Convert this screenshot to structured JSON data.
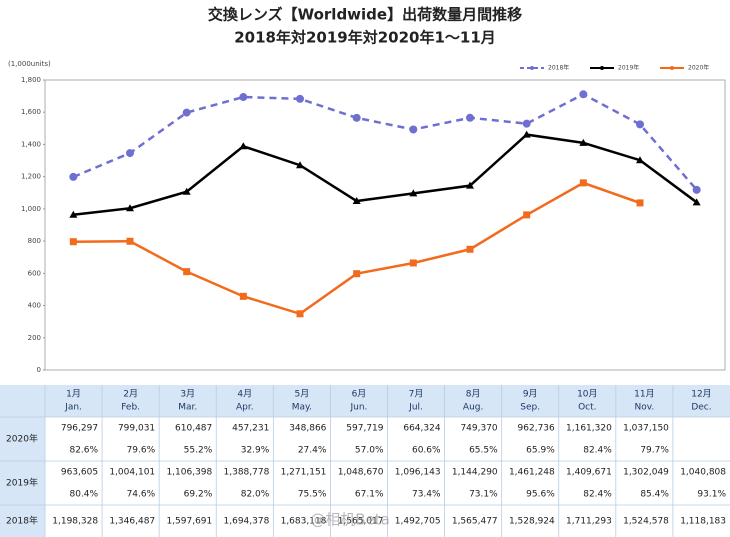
{
  "chart_data": {
    "type": "line",
    "title": "交換レンズ【Worldwide】出荷数量月間推移",
    "subtitle": "2018年対2019年対2020年1～11月",
    "y_label": "(1,000units)",
    "categories": [
      "1月",
      "2月",
      "3月",
      "4月",
      "5月",
      "6月",
      "7月",
      "8月",
      "9月",
      "10月",
      "11月",
      "12月"
    ],
    "categories_en": [
      "Jan.",
      "Feb.",
      "Mar.",
      "Apr.",
      "May.",
      "Jun.",
      "Jul.",
      "Aug.",
      "Sep.",
      "Oct.",
      "Nov.",
      "Dec."
    ],
    "ylim": [
      0,
      1800
    ],
    "yticks": [
      0,
      200,
      400,
      600,
      800,
      {
        "value": 1000,
        "label": "1,000"
      },
      {
        "value": 1200,
        "label": "1,200"
      },
      {
        "value": 1400,
        "label": "1,400"
      },
      {
        "value": 1600,
        "label": "1,600"
      },
      {
        "value": 1800,
        "label": "1,800"
      }
    ],
    "grid": false,
    "legend": "top-right",
    "series": [
      {
        "name": "2018年",
        "color": "#6f6fd2",
        "line_style": "dashed",
        "marker": "circle",
        "values": [
          1198.328,
          1346.487,
          1597.691,
          1694.378,
          1683.118,
          1565.017,
          1492.705,
          1565.477,
          1528.924,
          1711.293,
          1524.578,
          1118.183
        ],
        "value_labels": [
          "1,198,328",
          "1,346,487",
          "1,597,691",
          "1,694,378",
          "1,683,118",
          "1,565,017",
          "1,492,705",
          "1,565,477",
          "1,528,924",
          "1,711,293",
          "1,524,578",
          "1,118,183"
        ]
      },
      {
        "name": "2019年",
        "color": "#000000",
        "line_style": "solid",
        "marker": "triangle",
        "values": [
          963.605,
          1004.101,
          1106.398,
          1388.778,
          1271.151,
          1048.67,
          1096.143,
          1144.29,
          1461.248,
          1409.671,
          1302.049,
          1040.808
        ],
        "value_labels": [
          "963,605",
          "1,004,101",
          "1,106,398",
          "1,388,778",
          "1,271,151",
          "1,048,670",
          "1,096,143",
          "1,144,290",
          "1,461,248",
          "1,409,671",
          "1,302,049",
          "1,040,808"
        ],
        "ratio_labels": [
          "80.4%",
          "74.6%",
          "69.2%",
          "82.0%",
          "75.5%",
          "67.1%",
          "73.4%",
          "73.1%",
          "95.6%",
          "82.4%",
          "85.4%",
          "93.1%"
        ]
      },
      {
        "name": "2020年",
        "color": "#f26a1b",
        "line_style": "solid",
        "marker": "square",
        "values": [
          796.297,
          799.031,
          610.487,
          457.231,
          348.866,
          597.719,
          664.324,
          749.37,
          962.736,
          1161.32,
          1037.15,
          null
        ],
        "value_labels": [
          "796,297",
          "799,031",
          "610,487",
          "457,231",
          "348,866",
          "597,719",
          "664,324",
          "749,370",
          "962,736",
          "1,161,320",
          "1,037,150",
          null
        ],
        "ratio_labels": [
          "82.6%",
          "79.6%",
          "55.2%",
          "32.9%",
          "27.4%",
          "57.0%",
          "60.6%",
          "65.5%",
          "65.9%",
          "82.4%",
          "79.7%",
          null
        ]
      }
    ],
    "table_order": [
      2,
      1,
      0
    ],
    "watermark": "@相机Beta"
  }
}
